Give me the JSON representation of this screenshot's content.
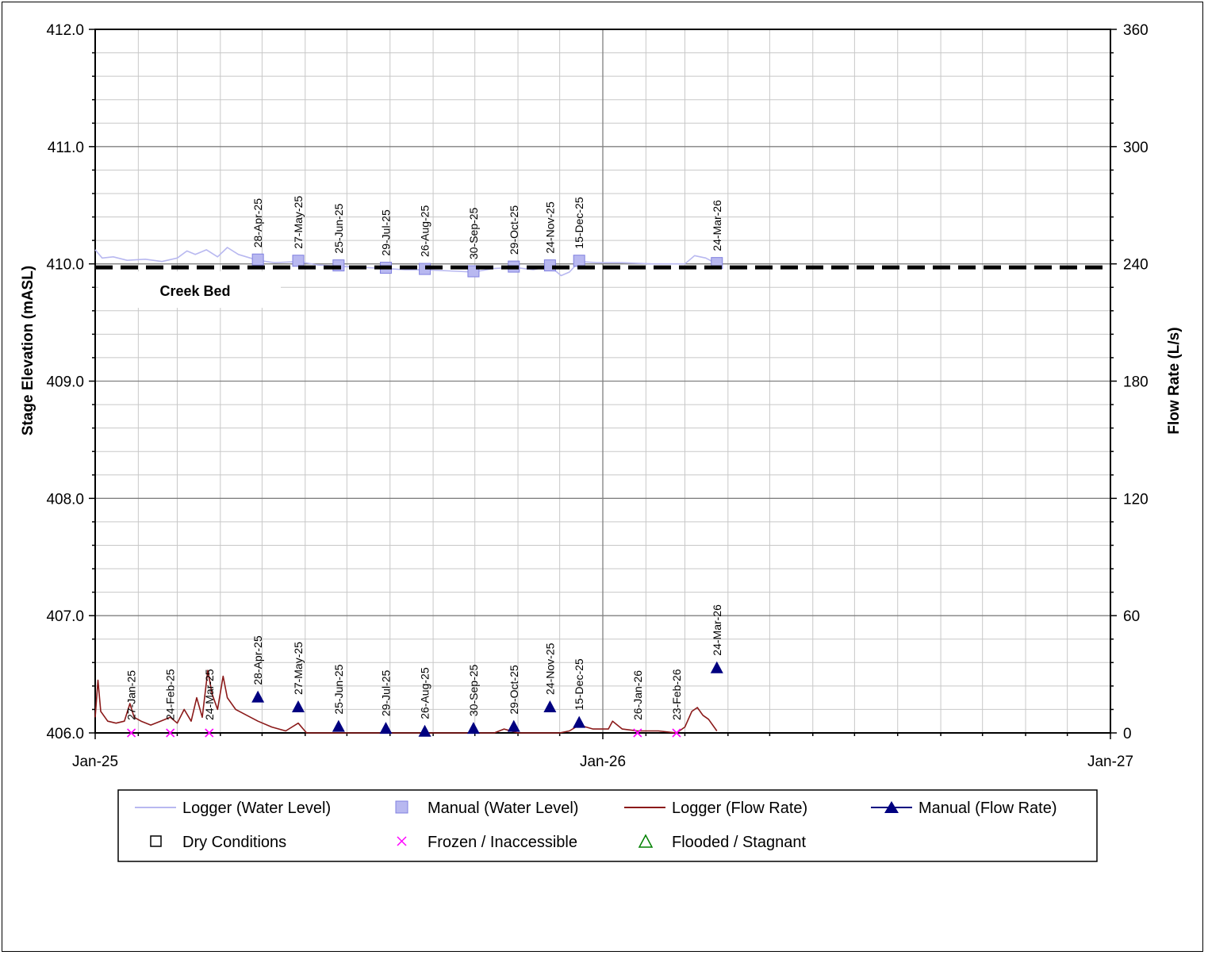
{
  "chart_data": {
    "type": "line",
    "xlabel": "",
    "ylabel": "Stage Elevation (mASL)",
    "y2label": "Flow Rate (L/s)",
    "xlim": [
      "2025-01-01",
      "2027-01-01"
    ],
    "x_ticks": [
      "Jan-25",
      "Jan-26",
      "Jan-27"
    ],
    "ylim": [
      406.0,
      412.0
    ],
    "y_ticks": [
      "406.0",
      "407.0",
      "408.0",
      "409.0",
      "410.0",
      "411.0",
      "412.0"
    ],
    "y2lim": [
      0,
      360
    ],
    "y2_ticks": [
      "0",
      "60",
      "120",
      "180",
      "240",
      "300",
      "360"
    ],
    "grid": true,
    "legend_position": "bottom",
    "reference_line": {
      "label": "Creek Bed",
      "y": 409.97,
      "style": "dashed",
      "color": "#000000"
    },
    "series": [
      {
        "name": "Logger (Water Level)",
        "kind": "line",
        "axis": "left",
        "color": "#b8b8f0",
        "points": [
          [
            "2025-01-01",
            410.12
          ],
          [
            "2025-01-06",
            410.05
          ],
          [
            "2025-01-14",
            410.06
          ],
          [
            "2025-01-24",
            410.03
          ],
          [
            "2025-02-06",
            410.04
          ],
          [
            "2025-02-18",
            410.02
          ],
          [
            "2025-03-01",
            410.05
          ],
          [
            "2025-03-08",
            410.11
          ],
          [
            "2025-03-14",
            410.08
          ],
          [
            "2025-03-22",
            410.12
          ],
          [
            "2025-03-30",
            410.06
          ],
          [
            "2025-04-06",
            410.14
          ],
          [
            "2025-04-14",
            410.08
          ],
          [
            "2025-04-28",
            410.03
          ],
          [
            "2025-05-10",
            410.01
          ],
          [
            "2025-05-27",
            410.02
          ],
          [
            "2025-06-10",
            409.99
          ],
          [
            "2025-06-25",
            409.98
          ],
          [
            "2025-07-12",
            409.97
          ],
          [
            "2025-07-29",
            409.96
          ],
          [
            "2025-08-12",
            409.95
          ],
          [
            "2025-08-26",
            409.95
          ],
          [
            "2025-09-12",
            409.94
          ],
          [
            "2025-09-30",
            409.93
          ],
          [
            "2025-10-14",
            409.96
          ],
          [
            "2025-10-29",
            409.97
          ],
          [
            "2025-11-12",
            409.95
          ],
          [
            "2025-11-24",
            409.98
          ],
          [
            "2025-12-02",
            409.9
          ],
          [
            "2025-12-08",
            409.93
          ],
          [
            "2025-12-15",
            410.02
          ],
          [
            "2025-12-28",
            410.01
          ],
          [
            "2026-01-15",
            410.01
          ],
          [
            "2026-02-05",
            410.0
          ],
          [
            "2026-03-01",
            410.0
          ],
          [
            "2026-03-08",
            410.07
          ],
          [
            "2026-03-16",
            410.05
          ],
          [
            "2026-03-24",
            410.0
          ]
        ]
      },
      {
        "name": "Manual (Water Level)",
        "kind": "marker-square",
        "axis": "left",
        "color": "#b8b8f0",
        "points": [
          [
            "2025-04-28",
            410.03
          ],
          [
            "2025-05-27",
            410.02
          ],
          [
            "2025-06-25",
            409.98
          ],
          [
            "2025-07-29",
            409.96
          ],
          [
            "2025-08-26",
            409.95
          ],
          [
            "2025-09-30",
            409.93
          ],
          [
            "2025-10-29",
            409.97
          ],
          [
            "2025-11-24",
            409.98
          ],
          [
            "2025-12-15",
            410.02
          ],
          [
            "2026-03-24",
            410.0
          ]
        ]
      },
      {
        "name": "Logger (Flow Rate)",
        "kind": "line",
        "axis": "right",
        "color": "#8b1a1a",
        "points": [
          [
            "2025-01-01",
            8
          ],
          [
            "2025-01-03",
            27
          ],
          [
            "2025-01-05",
            11
          ],
          [
            "2025-01-10",
            6
          ],
          [
            "2025-01-16",
            5
          ],
          [
            "2025-01-22",
            6
          ],
          [
            "2025-01-26",
            15
          ],
          [
            "2025-01-29",
            8
          ],
          [
            "2025-02-03",
            6
          ],
          [
            "2025-02-10",
            4
          ],
          [
            "2025-02-17",
            6
          ],
          [
            "2025-02-24",
            8
          ],
          [
            "2025-03-01",
            5
          ],
          [
            "2025-03-06",
            12
          ],
          [
            "2025-03-11",
            6
          ],
          [
            "2025-03-15",
            18
          ],
          [
            "2025-03-19",
            8
          ],
          [
            "2025-03-23",
            32
          ],
          [
            "2025-03-26",
            20
          ],
          [
            "2025-03-30",
            12
          ],
          [
            "2025-04-03",
            29
          ],
          [
            "2025-04-06",
            18
          ],
          [
            "2025-04-12",
            12
          ],
          [
            "2025-04-20",
            9
          ],
          [
            "2025-04-28",
            6
          ],
          [
            "2025-05-08",
            3
          ],
          [
            "2025-05-18",
            1
          ],
          [
            "2025-05-27",
            5
          ],
          [
            "2025-06-02",
            0
          ],
          [
            "2025-07-01",
            0
          ],
          [
            "2025-08-01",
            0
          ],
          [
            "2025-09-01",
            0
          ],
          [
            "2025-10-15",
            0
          ],
          [
            "2025-10-22",
            2
          ],
          [
            "2025-11-01",
            0
          ],
          [
            "2025-12-01",
            0
          ],
          [
            "2025-12-08",
            1
          ],
          [
            "2025-12-15",
            4
          ],
          [
            "2025-12-25",
            2
          ],
          [
            "2026-01-05",
            2
          ],
          [
            "2026-01-08",
            6
          ],
          [
            "2026-01-15",
            2
          ],
          [
            "2026-01-26",
            1
          ],
          [
            "2026-02-10",
            1
          ],
          [
            "2026-02-23",
            0
          ],
          [
            "2026-03-01",
            3
          ],
          [
            "2026-03-06",
            11
          ],
          [
            "2026-03-10",
            13
          ],
          [
            "2026-03-14",
            9
          ],
          [
            "2026-03-18",
            7
          ],
          [
            "2026-03-24",
            1
          ]
        ]
      },
      {
        "name": "Manual (Flow Rate)",
        "kind": "marker-triangle",
        "axis": "right",
        "color": "#000080",
        "points": [
          [
            "2025-04-28",
            18
          ],
          [
            "2025-05-27",
            13
          ],
          [
            "2025-06-25",
            3
          ],
          [
            "2025-07-29",
            2
          ],
          [
            "2025-08-26",
            0.5
          ],
          [
            "2025-09-30",
            2
          ],
          [
            "2025-10-29",
            3
          ],
          [
            "2025-11-24",
            13
          ],
          [
            "2025-12-15",
            5
          ],
          [
            "2026-03-24",
            33
          ]
        ]
      },
      {
        "name": "Dry Conditions",
        "kind": "marker-open-square",
        "axis": "right",
        "color": "#000000",
        "points": []
      },
      {
        "name": "Frozen / Inaccessible",
        "kind": "marker-x",
        "axis": "right",
        "color": "#ff00ff",
        "points": [
          [
            "2025-01-27",
            0
          ],
          [
            "2025-02-24",
            0
          ],
          [
            "2025-03-24",
            0
          ],
          [
            "2026-01-26",
            0
          ],
          [
            "2026-02-23",
            0
          ]
        ]
      },
      {
        "name": "Flooded / Stagnant",
        "kind": "marker-open-triangle",
        "axis": "right",
        "color": "#008000",
        "points": []
      }
    ],
    "annotations_upper": [
      {
        "text": "28-Apr-25",
        "x": "2025-04-28"
      },
      {
        "text": "27-May-25",
        "x": "2025-05-27"
      },
      {
        "text": "25-Jun-25",
        "x": "2025-06-25"
      },
      {
        "text": "29-Jul-25",
        "x": "2025-07-29"
      },
      {
        "text": "26-Aug-25",
        "x": "2025-08-26"
      },
      {
        "text": "30-Sep-25",
        "x": "2025-09-30"
      },
      {
        "text": "29-Oct-25",
        "x": "2025-10-29"
      },
      {
        "text": "24-Nov-25",
        "x": "2025-11-24"
      },
      {
        "text": "15-Dec-25",
        "x": "2025-12-15"
      },
      {
        "text": "24-Mar-26",
        "x": "2026-03-24"
      }
    ],
    "annotations_lower": [
      {
        "text": "27-Jan-25",
        "x": "2025-01-27"
      },
      {
        "text": "24-Feb-25",
        "x": "2025-02-24"
      },
      {
        "text": "24-Mar-25",
        "x": "2025-03-24"
      },
      {
        "text": "28-Apr-25",
        "x": "2025-04-28"
      },
      {
        "text": "27-May-25",
        "x": "2025-05-27"
      },
      {
        "text": "25-Jun-25",
        "x": "2025-06-25"
      },
      {
        "text": "29-Jul-25",
        "x": "2025-07-29"
      },
      {
        "text": "26-Aug-25",
        "x": "2025-08-26"
      },
      {
        "text": "30-Sep-25",
        "x": "2025-09-30"
      },
      {
        "text": "29-Oct-25",
        "x": "2025-10-29"
      },
      {
        "text": "24-Nov-25",
        "x": "2025-11-24"
      },
      {
        "text": "15-Dec-25",
        "x": "2025-12-15"
      },
      {
        "text": "26-Jan-26",
        "x": "2026-01-26"
      },
      {
        "text": "23-Feb-26",
        "x": "2026-02-23"
      },
      {
        "text": "24-Mar-26",
        "x": "2026-03-24"
      }
    ]
  }
}
